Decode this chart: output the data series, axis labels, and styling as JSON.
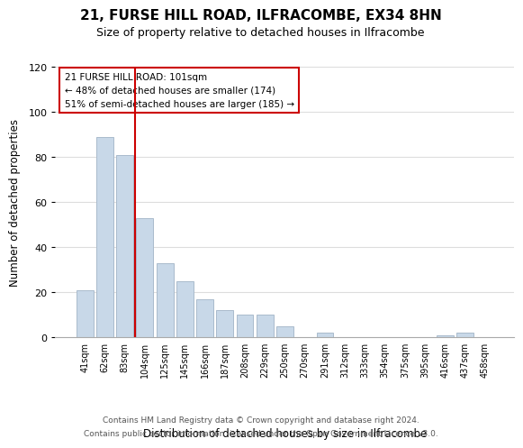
{
  "title_line1": "21, FURSE HILL ROAD, ILFRACOMBE, EX34 8HN",
  "title_line2": "Size of property relative to detached houses in Ilfracombe",
  "xlabel": "Distribution of detached houses by size in Ilfracombe",
  "ylabel": "Number of detached properties",
  "bin_labels": [
    "41sqm",
    "62sqm",
    "83sqm",
    "104sqm",
    "125sqm",
    "145sqm",
    "166sqm",
    "187sqm",
    "208sqm",
    "229sqm",
    "250sqm",
    "270sqm",
    "291sqm",
    "312sqm",
    "333sqm",
    "354sqm",
    "375sqm",
    "395sqm",
    "416sqm",
    "437sqm",
    "458sqm"
  ],
  "bar_values": [
    21,
    89,
    81,
    53,
    33,
    25,
    17,
    12,
    10,
    10,
    5,
    0,
    2,
    0,
    0,
    0,
    0,
    0,
    1,
    2,
    0
  ],
  "bar_color": "#c8d8e8",
  "bar_edge_color": "#aabbcc",
  "annotation_line1": "21 FURSE HILL ROAD: 101sqm",
  "annotation_line2": "← 48% of detached houses are smaller (174)",
  "annotation_line3": "51% of semi-detached houses are larger (185) →",
  "annotation_box_color": "#ffffff",
  "annotation_box_edge": "#cc0000",
  "vertical_line_x": 2.5,
  "vertical_line_color": "#cc0000",
  "ylim": [
    0,
    120
  ],
  "yticks": [
    0,
    20,
    40,
    60,
    80,
    100,
    120
  ],
  "footer_line1": "Contains HM Land Registry data © Crown copyright and database right 2024.",
  "footer_line2": "Contains public sector information licensed under the Open Government Licence v3.0.",
  "bg_color": "#ffffff",
  "grid_color": "#dddddd"
}
